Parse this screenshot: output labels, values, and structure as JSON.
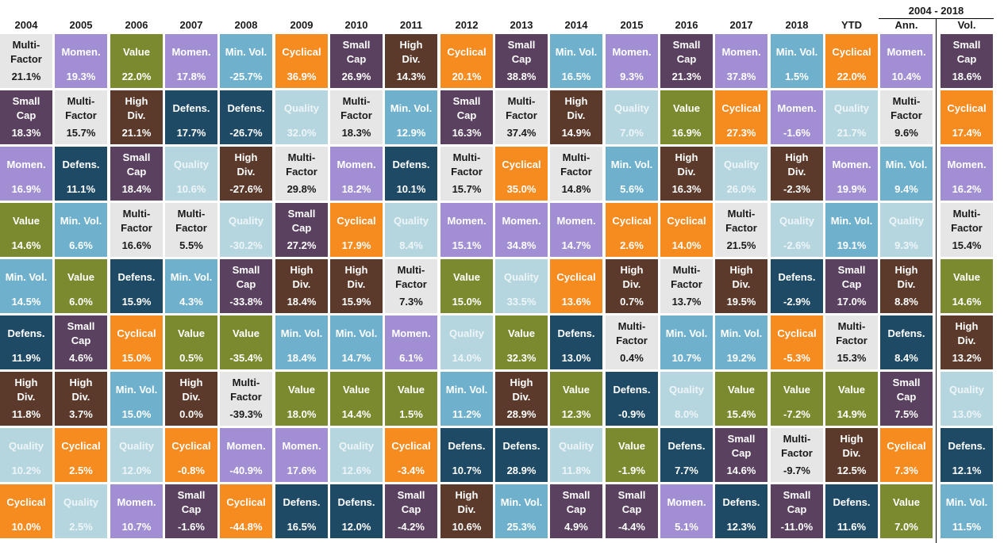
{
  "span_header": "2004 - 2018",
  "columns": [
    "2004",
    "2005",
    "2006",
    "2007",
    "2008",
    "2009",
    "2010",
    "2011",
    "2012",
    "2013",
    "2014",
    "2015",
    "2016",
    "2017",
    "2018",
    "YTD",
    "Ann.",
    "Vol."
  ],
  "factor_labels": {
    "Multi-Factor": "Multi-\nFactor",
    "Momentum": "Momen.",
    "Value": "Value",
    "Min. Vol.": "Min. Vol.",
    "Cyclical": "Cyclical",
    "Small Cap": "Small\nCap",
    "High Div.": "High\nDiv.",
    "Quality": "Quality",
    "Defensive": "Defens."
  },
  "factor_colors": {
    "Multi-Factor": "#e6e6e6",
    "Momentum": "#a28fd3",
    "Value": "#7c8a2f",
    "Min. Vol.": "#6fb1cd",
    "Cyclical": "#f68b1f",
    "Small Cap": "#5a4160",
    "High Div.": "#5b3a2b",
    "Quality": "#b6d6df",
    "Defensive": "#1f4a66"
  },
  "chart_data": {
    "type": "table",
    "title": "",
    "columns": [
      "2004",
      "2005",
      "2006",
      "2007",
      "2008",
      "2009",
      "2010",
      "2011",
      "2012",
      "2013",
      "2014",
      "2015",
      "2016",
      "2017",
      "2018",
      "YTD",
      "Ann.",
      "Vol."
    ],
    "grouped_header": {
      "label": "2004 - 2018",
      "columns": [
        "Ann.",
        "Vol."
      ]
    },
    "ranked_columns": [
      [
        [
          "Multi-Factor",
          "21.1%"
        ],
        [
          "Small Cap",
          "18.3%"
        ],
        [
          "Momentum",
          "16.9%"
        ],
        [
          "Value",
          "14.6%"
        ],
        [
          "Min. Vol.",
          "14.5%"
        ],
        [
          "Defensive",
          "11.9%"
        ],
        [
          "High Div.",
          "11.8%"
        ],
        [
          "Quality",
          "10.2%"
        ],
        [
          "Cyclical",
          "10.0%"
        ]
      ],
      [
        [
          "Momentum",
          "19.3%"
        ],
        [
          "Multi-Factor",
          "15.7%"
        ],
        [
          "Defensive",
          "11.1%"
        ],
        [
          "Min. Vol.",
          "6.6%"
        ],
        [
          "Value",
          "6.0%"
        ],
        [
          "Small Cap",
          "4.6%"
        ],
        [
          "High Div.",
          "3.7%"
        ],
        [
          "Cyclical",
          "2.5%"
        ],
        [
          "Quality",
          "2.5%"
        ]
      ],
      [
        [
          "Value",
          "22.0%"
        ],
        [
          "High Div.",
          "21.1%"
        ],
        [
          "Small Cap",
          "18.4%"
        ],
        [
          "Multi-Factor",
          "16.6%"
        ],
        [
          "Defensive",
          "15.9%"
        ],
        [
          "Cyclical",
          "15.0%"
        ],
        [
          "Min. Vol.",
          "15.0%"
        ],
        [
          "Quality",
          "12.0%"
        ],
        [
          "Momentum",
          "10.7%"
        ]
      ],
      [
        [
          "Momentum",
          "17.8%"
        ],
        [
          "Defensive",
          "17.7%"
        ],
        [
          "Quality",
          "10.6%"
        ],
        [
          "Multi-Factor",
          "5.5%"
        ],
        [
          "Min. Vol.",
          "4.3%"
        ],
        [
          "Value",
          "0.5%"
        ],
        [
          "High Div.",
          "0.0%"
        ],
        [
          "Cyclical",
          "-0.8%"
        ],
        [
          "Small Cap",
          "-1.6%"
        ]
      ],
      [
        [
          "Min. Vol.",
          "-25.7%"
        ],
        [
          "Defensive",
          "-26.7%"
        ],
        [
          "High Div.",
          "-27.6%"
        ],
        [
          "Quality",
          "-30.2%"
        ],
        [
          "Small Cap",
          "-33.8%"
        ],
        [
          "Value",
          "-35.4%"
        ],
        [
          "Multi-Factor",
          "-39.3%"
        ],
        [
          "Momentum",
          "-40.9%"
        ],
        [
          "Cyclical",
          "-44.8%"
        ]
      ],
      [
        [
          "Cyclical",
          "36.9%"
        ],
        [
          "Quality",
          "32.0%"
        ],
        [
          "Multi-Factor",
          "29.8%"
        ],
        [
          "Small Cap",
          "27.2%"
        ],
        [
          "High Div.",
          "18.4%"
        ],
        [
          "Min. Vol.",
          "18.4%"
        ],
        [
          "Value",
          "18.0%"
        ],
        [
          "Momentum",
          "17.6%"
        ],
        [
          "Defensive",
          "16.5%"
        ]
      ],
      [
        [
          "Small Cap",
          "26.9%"
        ],
        [
          "Multi-Factor",
          "18.3%"
        ],
        [
          "Momentum",
          "18.2%"
        ],
        [
          "Cyclical",
          "17.9%"
        ],
        [
          "High Div.",
          "15.9%"
        ],
        [
          "Min. Vol.",
          "14.7%"
        ],
        [
          "Value",
          "14.4%"
        ],
        [
          "Quality",
          "12.6%"
        ],
        [
          "Defensive",
          "12.0%"
        ]
      ],
      [
        [
          "High Div.",
          "14.3%"
        ],
        [
          "Min. Vol.",
          "12.9%"
        ],
        [
          "Defensive",
          "10.1%"
        ],
        [
          "Quality",
          "8.4%"
        ],
        [
          "Multi-Factor",
          "7.3%"
        ],
        [
          "Momentum",
          "6.1%"
        ],
        [
          "Value",
          "1.5%"
        ],
        [
          "Cyclical",
          "-3.4%"
        ],
        [
          "Small Cap",
          "-4.2%"
        ]
      ],
      [
        [
          "Cyclical",
          "20.1%"
        ],
        [
          "Small Cap",
          "16.3%"
        ],
        [
          "Multi-Factor",
          "15.7%"
        ],
        [
          "Momentum",
          "15.1%"
        ],
        [
          "Value",
          "15.0%"
        ],
        [
          "Quality",
          "14.0%"
        ],
        [
          "Min. Vol.",
          "11.2%"
        ],
        [
          "Defensive",
          "10.7%"
        ],
        [
          "High Div.",
          "10.6%"
        ]
      ],
      [
        [
          "Small Cap",
          "38.8%"
        ],
        [
          "Multi-Factor",
          "37.4%"
        ],
        [
          "Cyclical",
          "35.0%"
        ],
        [
          "Momentum",
          "34.8%"
        ],
        [
          "Quality",
          "33.5%"
        ],
        [
          "Value",
          "32.3%"
        ],
        [
          "High Div.",
          "28.9%"
        ],
        [
          "Defensive",
          "28.9%"
        ],
        [
          "Min. Vol.",
          "25.3%"
        ]
      ],
      [
        [
          "Min. Vol.",
          "16.5%"
        ],
        [
          "High Div.",
          "14.9%"
        ],
        [
          "Multi-Factor",
          "14.8%"
        ],
        [
          "Momentum",
          "14.7%"
        ],
        [
          "Cyclical",
          "13.6%"
        ],
        [
          "Defensive",
          "13.0%"
        ],
        [
          "Value",
          "12.3%"
        ],
        [
          "Quality",
          "11.8%"
        ],
        [
          "Small Cap",
          "4.9%"
        ]
      ],
      [
        [
          "Momentum",
          "9.3%"
        ],
        [
          "Quality",
          "7.0%"
        ],
        [
          "Min. Vol.",
          "5.6%"
        ],
        [
          "Cyclical",
          "2.6%"
        ],
        [
          "High Div.",
          "0.7%"
        ],
        [
          "Multi-Factor",
          "0.4%"
        ],
        [
          "Defensive",
          "-0.9%"
        ],
        [
          "Value",
          "-1.9%"
        ],
        [
          "Small Cap",
          "-4.4%"
        ]
      ],
      [
        [
          "Small Cap",
          "21.3%"
        ],
        [
          "Value",
          "16.9%"
        ],
        [
          "High Div.",
          "16.3%"
        ],
        [
          "Cyclical",
          "14.0%"
        ],
        [
          "Multi-Factor",
          "13.7%"
        ],
        [
          "Min. Vol.",
          "10.7%"
        ],
        [
          "Quality",
          "8.0%"
        ],
        [
          "Defensive",
          "7.7%"
        ],
        [
          "Momentum",
          "5.1%"
        ]
      ],
      [
        [
          "Momentum",
          "37.8%"
        ],
        [
          "Cyclical",
          "27.3%"
        ],
        [
          "Quality",
          "26.0%"
        ],
        [
          "Multi-Factor",
          "21.5%"
        ],
        [
          "High Div.",
          "19.5%"
        ],
        [
          "Min. Vol.",
          "19.2%"
        ],
        [
          "Value",
          "15.4%"
        ],
        [
          "Small Cap",
          "14.6%"
        ],
        [
          "Defensive",
          "12.3%"
        ]
      ],
      [
        [
          "Min. Vol.",
          "1.5%"
        ],
        [
          "Momentum",
          "-1.6%"
        ],
        [
          "High Div.",
          "-2.3%"
        ],
        [
          "Quality",
          "-2.6%"
        ],
        [
          "Defensive",
          "-2.9%"
        ],
        [
          "Cyclical",
          "-5.3%"
        ],
        [
          "Value",
          "-7.2%"
        ],
        [
          "Multi-Factor",
          "-9.7%"
        ],
        [
          "Small Cap",
          "-11.0%"
        ]
      ],
      [
        [
          "Cyclical",
          "22.0%"
        ],
        [
          "Quality",
          "21.7%"
        ],
        [
          "Momentum",
          "19.9%"
        ],
        [
          "Min. Vol.",
          "19.1%"
        ],
        [
          "Small Cap",
          "17.0%"
        ],
        [
          "Multi-Factor",
          "15.3%"
        ],
        [
          "Value",
          "14.9%"
        ],
        [
          "High Div.",
          "12.5%"
        ],
        [
          "Defensive",
          "11.6%"
        ]
      ],
      [
        [
          "Momentum",
          "10.4%"
        ],
        [
          "Multi-Factor",
          "9.6%"
        ],
        [
          "Min. Vol.",
          "9.4%"
        ],
        [
          "Quality",
          "9.3%"
        ],
        [
          "High Div.",
          "8.8%"
        ],
        [
          "Defensive",
          "8.4%"
        ],
        [
          "Small Cap",
          "7.5%"
        ],
        [
          "Cyclical",
          "7.3%"
        ],
        [
          "Value",
          "7.0%"
        ]
      ],
      [
        [
          "Small Cap",
          "18.6%"
        ],
        [
          "Cyclical",
          "17.4%"
        ],
        [
          "Momentum",
          "16.2%"
        ],
        [
          "Multi-Factor",
          "15.4%"
        ],
        [
          "Value",
          "14.6%"
        ],
        [
          "High Div.",
          "13.2%"
        ],
        [
          "Quality",
          "13.0%"
        ],
        [
          "Defensive",
          "12.1%"
        ],
        [
          "Min. Vol.",
          "11.5%"
        ]
      ]
    ]
  }
}
